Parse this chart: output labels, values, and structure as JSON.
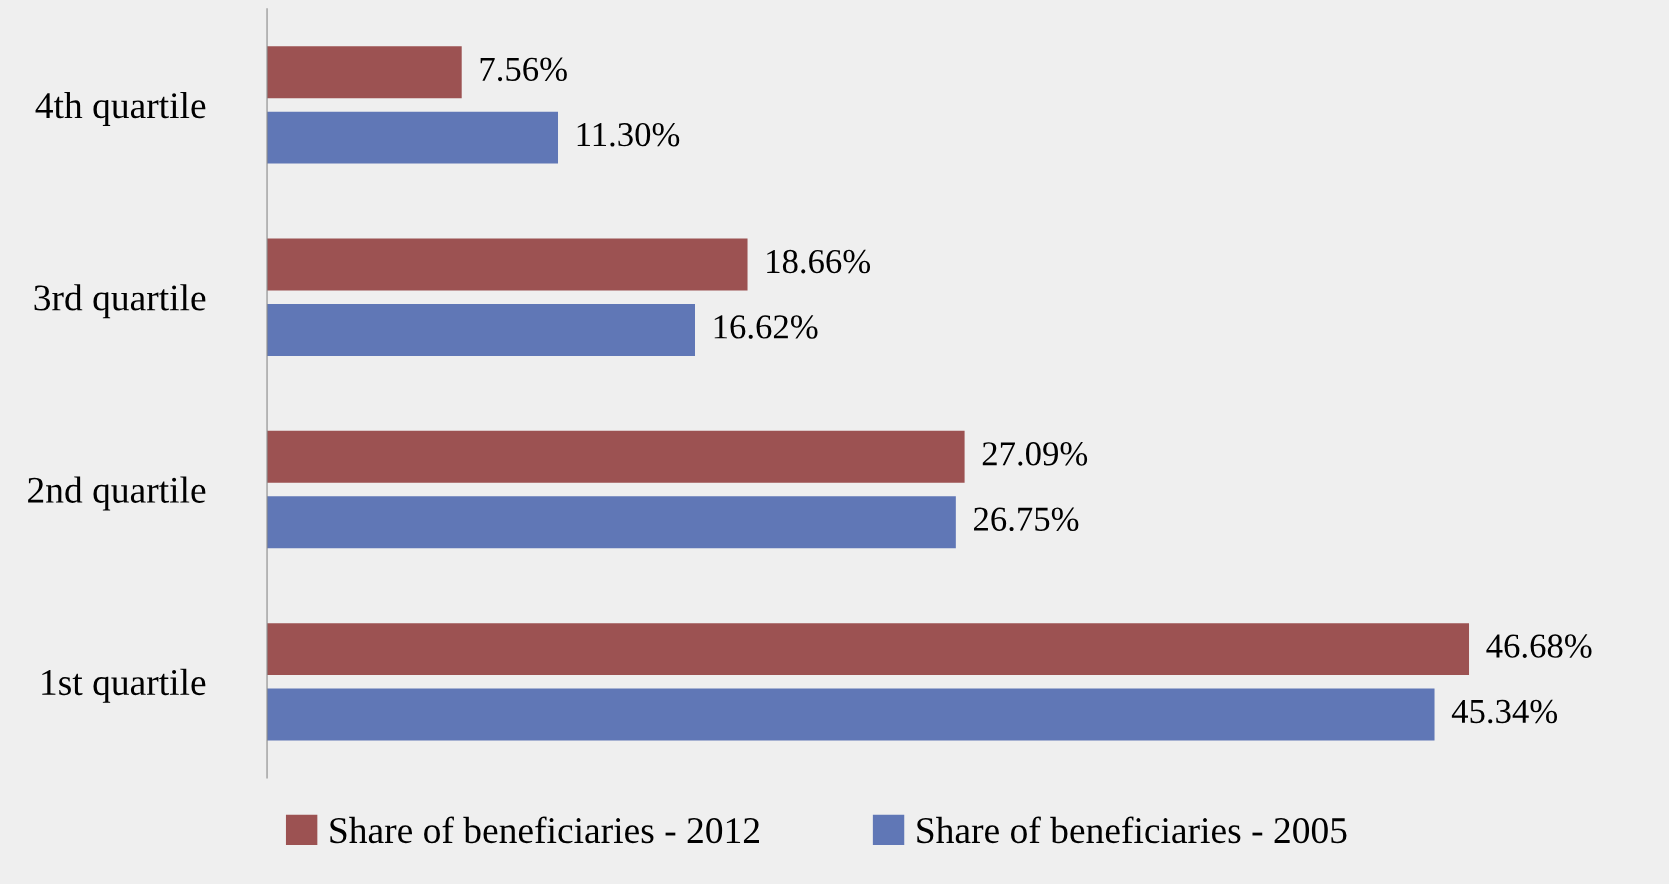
{
  "chart_data": {
    "type": "bar",
    "orientation": "horizontal",
    "categories": [
      "4th quartile",
      "3rd quartile",
      "2nd quartile",
      "1st quartile"
    ],
    "series": [
      {
        "name": "Share of beneficiaries - 2012",
        "color": "#9c5252",
        "values": [
          7.56,
          18.66,
          27.09,
          46.68
        ],
        "value_labels": [
          "7.56%",
          "18.66%",
          "27.09%",
          "46.68%"
        ]
      },
      {
        "name": "Share of beneficiaries - 2005",
        "color": "#6077b6",
        "values": [
          11.3,
          16.62,
          26.75,
          45.34
        ],
        "value_labels": [
          "11.30%",
          "16.62%",
          "26.75%",
          "45.34%"
        ]
      }
    ],
    "tick_labels": "y",
    "grid": false,
    "legend": "bottom"
  }
}
